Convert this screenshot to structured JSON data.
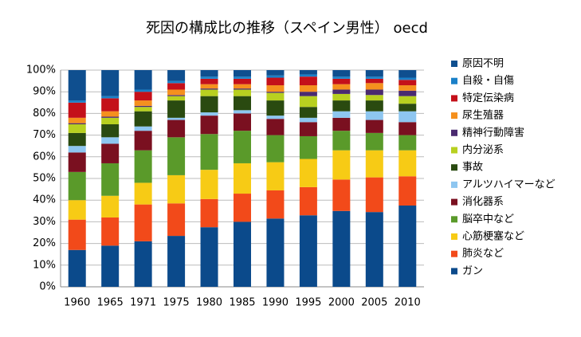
{
  "chart_data": {
    "type": "stacked_bar_percent",
    "title": "死因の構成比の推移（スペイン男性） oecd",
    "categories": [
      "1960",
      "1965",
      "1971",
      "1975",
      "1980",
      "1985",
      "1990",
      "1995",
      "2000",
      "2005",
      "2010"
    ],
    "ylim": [
      0,
      100
    ],
    "yticks": [
      {
        "value": 0,
        "label": "0%"
      },
      {
        "value": 10,
        "label": "10%"
      },
      {
        "value": 20,
        "label": "20%"
      },
      {
        "value": 30,
        "label": "30%"
      },
      {
        "value": 40,
        "label": "40%"
      },
      {
        "value": 50,
        "label": "50%"
      },
      {
        "value": 60,
        "label": "60%"
      },
      {
        "value": 70,
        "label": "70%"
      },
      {
        "value": 80,
        "label": "80%"
      },
      {
        "value": 90,
        "label": "90%"
      },
      {
        "value": 100,
        "label": "100%"
      }
    ],
    "grid": true,
    "legend": "right",
    "series": [
      {
        "name": "ガン",
        "color": "#0b4a8b",
        "values": [
          17,
          19,
          21,
          23.5,
          27.5,
          30,
          31.5,
          33,
          35,
          34.5,
          37.5
        ]
      },
      {
        "name": "肺炎など",
        "color": "#f24a1a",
        "values": [
          14,
          13,
          17,
          15,
          13,
          13,
          13,
          13,
          14.5,
          16,
          13.5
        ]
      },
      {
        "name": "心筋梗塞など",
        "color": "#f7cb15",
        "values": [
          9,
          10,
          10,
          13,
          13.5,
          14,
          13,
          13,
          13.5,
          12.5,
          12
        ]
      },
      {
        "name": "脳卒中など",
        "color": "#5a9a2a",
        "values": [
          13,
          15,
          15,
          17.5,
          16.5,
          15,
          12.5,
          10.5,
          9,
          8,
          7
        ]
      },
      {
        "name": "消化器系",
        "color": "#7a1020",
        "values": [
          9,
          9,
          9,
          8,
          8.5,
          8,
          7.5,
          6.5,
          6,
          6,
          6
        ]
      },
      {
        "name": "アルツハイマーなど",
        "color": "#8ec6f0",
        "values": [
          3,
          3,
          2,
          1,
          1.5,
          1.5,
          1.5,
          2,
          3,
          4,
          5
        ]
      },
      {
        "name": "事故",
        "color": "#2a4a10",
        "values": [
          6,
          6,
          7,
          8,
          7.5,
          6.5,
          7,
          5,
          5,
          5,
          3.5
        ]
      },
      {
        "name": "内分泌系",
        "color": "#b8d020",
        "values": [
          4,
          3,
          2,
          2,
          3,
          3,
          3.5,
          5,
          3,
          2.5,
          3.5
        ]
      },
      {
        "name": "精神行動障害",
        "color": "#4a2a70",
        "values": [
          0.5,
          0.5,
          0.5,
          0.5,
          0.5,
          0.5,
          0.5,
          2,
          2,
          2.5,
          2.5
        ]
      },
      {
        "name": "尿生殖器",
        "color": "#f5901e",
        "values": [
          2.5,
          2.5,
          2.5,
          2.5,
          2,
          2,
          3,
          3,
          2.5,
          3,
          2.5
        ]
      },
      {
        "name": "特定伝染病",
        "color": "#c4101a",
        "values": [
          7,
          6,
          4,
          3,
          2.5,
          2.5,
          3.5,
          4,
          2.5,
          2,
          2.5
        ]
      },
      {
        "name": "自殺・自傷",
        "color": "#1a80c8",
        "values": [
          1,
          1,
          1,
          1,
          1,
          1,
          1,
          1,
          1,
          1,
          1
        ]
      },
      {
        "name": "原因不明",
        "color": "#0f4f8f",
        "values": [
          14,
          12,
          9,
          5,
          3,
          3,
          2.5,
          2,
          3,
          3,
          3.5
        ]
      }
    ]
  }
}
